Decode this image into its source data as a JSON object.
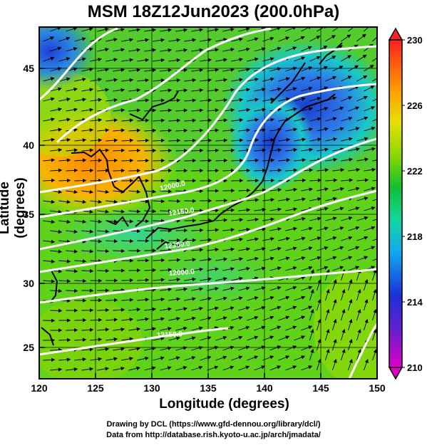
{
  "title": "MSM 18Z12Jun2023 (200.0hPa)",
  "axes": {
    "xlabel": "Longitude (degrees)",
    "ylabel": "Latitude  (degrees)",
    "x_ticks": [
      "120",
      "125",
      "130",
      "135",
      "140",
      "145",
      "150"
    ],
    "y_ticks": [
      "25",
      "30",
      "35",
      "40",
      "45"
    ],
    "xlim": [
      120,
      150
    ],
    "ylim": [
      22.4,
      47.6
    ]
  },
  "colorbar": {
    "labels": [
      "230",
      "226",
      "222",
      "218",
      "214",
      "210"
    ],
    "range": [
      210,
      230
    ],
    "colors": [
      "#ff00cc",
      "#2020d0",
      "#2070ff",
      "#10d0e0",
      "#10c030",
      "#60d000",
      "#e0e000",
      "#ff9000",
      "#ff2020"
    ]
  },
  "contour_labels": [
    "12000.0",
    "12150.0",
    "12300.0",
    "12000.0",
    "12150.0"
  ],
  "credits": {
    "line1": "Drawing by DCL (https://www.gfd-dennou.org/library/dcl/)",
    "line2": "Data from http://database.rish.kyoto-u.ac.jp/arch/jmadata/"
  },
  "chart_data": {
    "type": "heatmap",
    "title": "MSM 18Z12Jun2023 (200.0hPa)",
    "xlabel": "Longitude (degrees)",
    "ylabel": "Latitude  (degrees)",
    "xlim": [
      120,
      150
    ],
    "ylim": [
      22.4,
      47.6
    ],
    "colorbar_range": [
      210,
      230
    ],
    "field_samples": [
      {
        "lon": 121,
        "lat": 47,
        "value": 214
      },
      {
        "lon": 124,
        "lat": 39,
        "value": 227
      },
      {
        "lon": 126,
        "lat": 38,
        "value": 226
      },
      {
        "lon": 122,
        "lat": 43,
        "value": 222
      },
      {
        "lon": 140,
        "lat": 41,
        "value": 215
      },
      {
        "lon": 143,
        "lat": 45,
        "value": 215
      },
      {
        "lon": 136,
        "lat": 33,
        "value": 219
      },
      {
        "lon": 125,
        "lat": 30,
        "value": 222
      },
      {
        "lon": 135,
        "lat": 25,
        "value": 223
      },
      {
        "lon": 148,
        "lat": 30,
        "value": 223
      },
      {
        "lon": 148,
        "lat": 38,
        "value": 220
      }
    ]
  }
}
